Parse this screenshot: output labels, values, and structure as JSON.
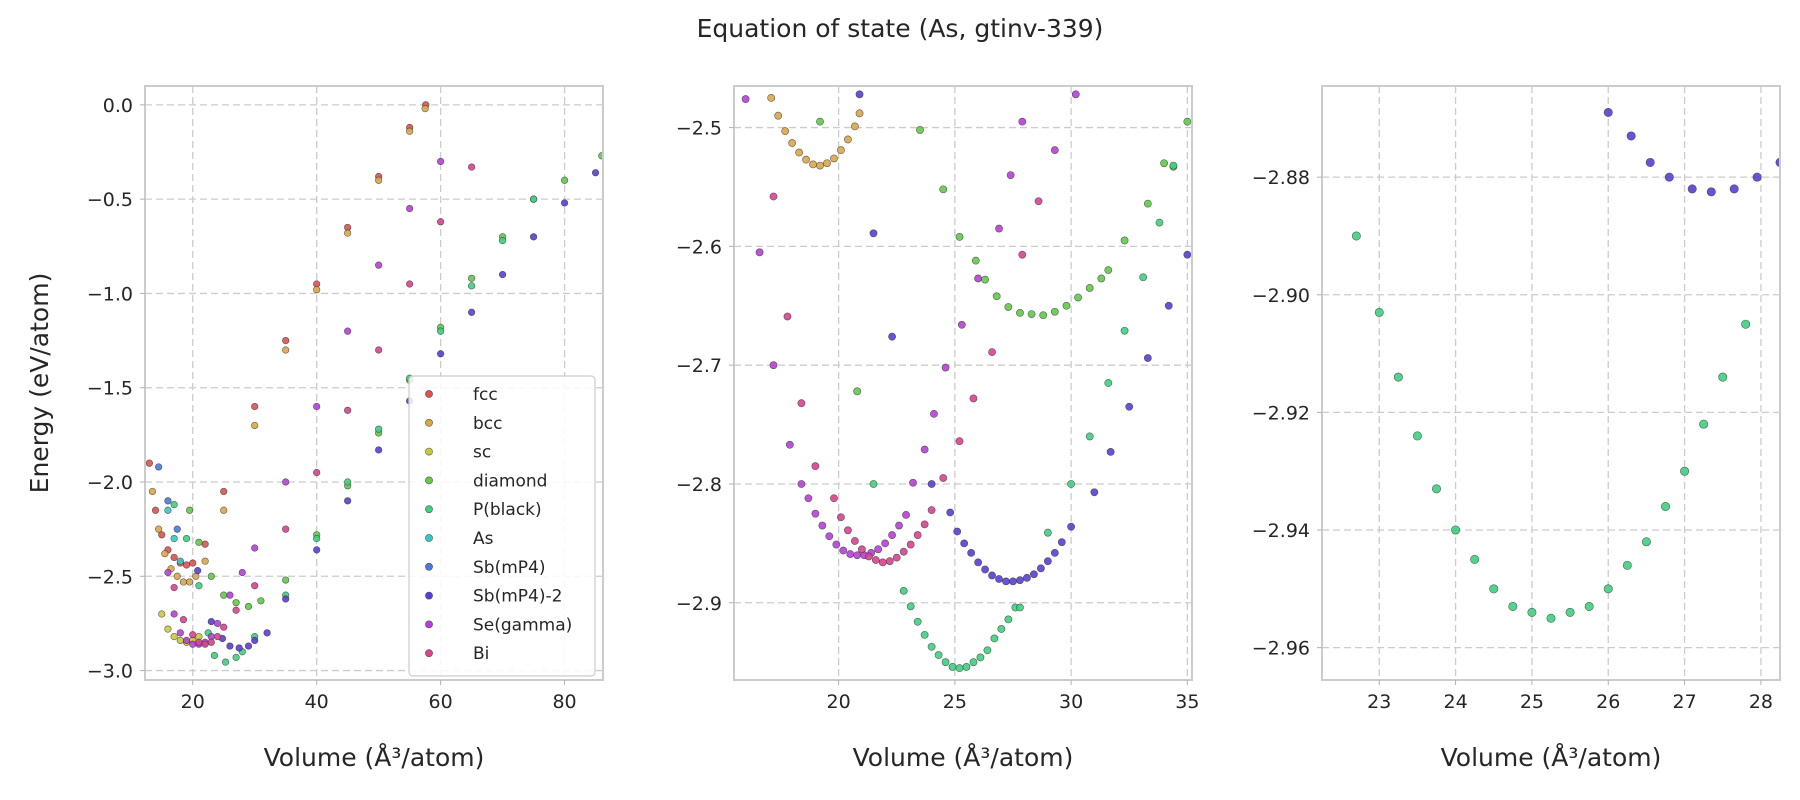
{
  "figure": {
    "title": "Equation of state (As, gtinv-339)"
  },
  "colors": {
    "fcc": "#d9534f",
    "bcc": "#d9a64a",
    "sc": "#c8c93a",
    "diamond": "#63c94a",
    "P(black)": "#3fcf80",
    "As": "#3bc6c6",
    "Sb(mP4)": "#4a7ad8",
    "Sb(mP4)-2": "#5b3ed0",
    "Se(gamma)": "#b640d6",
    "Bi": "#d6438f"
  },
  "chart_data": [
    {
      "type": "scatter",
      "title": "",
      "xlabel": "Volume (Å³/atom)",
      "ylabel": "Energy (eV/atom)",
      "xlim": [
        12.3,
        86.2
      ],
      "ylim": [
        -3.05,
        0.1
      ],
      "xticks": [
        20,
        40,
        60,
        80
      ],
      "yticks": [
        0.0,
        -0.5,
        -1.0,
        -1.5,
        -2.0,
        -2.5,
        -3.0
      ],
      "xtick_labels": [
        "20",
        "40",
        "60",
        "80"
      ],
      "ytick_labels": [
        "0.0",
        "−0.5",
        "−1.0",
        "−1.5",
        "−2.0",
        "−2.5",
        "−3.0"
      ],
      "grid": true,
      "legend": "lower-right",
      "series": [
        {
          "name": "fcc",
          "x": [
            13.0,
            14.0,
            15.0,
            16.0,
            17.0,
            18.0,
            19.0,
            20.0,
            22.0,
            25.0,
            30.0,
            35.0,
            40.0,
            45.0,
            50.0,
            55.0,
            57.6
          ],
          "y": [
            -1.9,
            -2.15,
            -2.28,
            -2.36,
            -2.4,
            -2.43,
            -2.44,
            -2.43,
            -2.33,
            -2.05,
            -1.6,
            -1.25,
            -0.95,
            -0.65,
            -0.38,
            -0.12,
            0.0
          ]
        },
        {
          "name": "bcc",
          "x": [
            13.5,
            14.5,
            15.5,
            16.5,
            17.5,
            18.5,
            19.5,
            20.5,
            22.0,
            25.0,
            30.0,
            35.0,
            40.0,
            45.0,
            50.0,
            55.0,
            57.5
          ],
          "y": [
            -2.05,
            -2.25,
            -2.38,
            -2.46,
            -2.5,
            -2.53,
            -2.53,
            -2.5,
            -2.42,
            -2.15,
            -1.7,
            -1.3,
            -0.98,
            -0.68,
            -0.4,
            -0.14,
            -0.02
          ]
        },
        {
          "name": "sc",
          "x": [
            15.0,
            16.0,
            17.0,
            18.0,
            19.0,
            20.0,
            21.0
          ],
          "y": [
            -2.7,
            -2.78,
            -2.82,
            -2.84,
            -2.85,
            -2.84,
            -2.82
          ]
        },
        {
          "name": "diamond",
          "x": [
            19.5,
            21.0,
            23.0,
            25.0,
            27.0,
            29.0,
            31.0,
            35.0,
            40.0,
            45.0,
            50.0,
            55.0,
            60.0,
            65.0,
            70.0,
            75.0,
            80.0,
            86.0
          ],
          "y": [
            -2.15,
            -2.32,
            -2.5,
            -2.6,
            -2.64,
            -2.66,
            -2.63,
            -2.52,
            -2.28,
            -2.02,
            -1.74,
            -1.46,
            -1.18,
            -0.92,
            -0.7,
            -0.5,
            -0.4,
            -0.27
          ]
        },
        {
          "name": "P(black)",
          "x": [
            17.0,
            19.0,
            21.0,
            22.5,
            23.5,
            25.3,
            27.0,
            28.0,
            30.0,
            35.0,
            40.0,
            45.0,
            50.0,
            55.0,
            60.0,
            65.0,
            70.0,
            75.0
          ],
          "y": [
            -2.12,
            -2.3,
            -2.55,
            -2.8,
            -2.92,
            -2.955,
            -2.93,
            -2.9,
            -2.82,
            -2.6,
            -2.3,
            -2.0,
            -1.72,
            -1.45,
            -1.2,
            -0.96,
            -0.72,
            -0.5
          ]
        },
        {
          "name": "As",
          "x": [
            16.0,
            17.0,
            18.0
          ],
          "y": [
            -2.15,
            -2.3,
            -2.42
          ]
        },
        {
          "name": "Sb(mP4)",
          "x": [
            14.5,
            16.0,
            17.5
          ],
          "y": [
            -1.92,
            -2.1,
            -2.25
          ]
        },
        {
          "name": "Sb(mP4)-2",
          "x": [
            20.8,
            23.0,
            24.8,
            26.0,
            27.5,
            29.0,
            30.0,
            32.0,
            35.0,
            40.0,
            45.0,
            50.0,
            55.0,
            60.0,
            65.0,
            70.0,
            75.0,
            80.0,
            85.0
          ],
          "y": [
            -2.47,
            -2.74,
            -2.83,
            -2.87,
            -2.88,
            -2.87,
            -2.84,
            -2.8,
            -2.62,
            -2.36,
            -2.1,
            -1.83,
            -1.57,
            -1.32,
            -1.1,
            -0.9,
            -0.7,
            -0.52,
            -0.36
          ]
        },
        {
          "name": "Se(gamma)",
          "x": [
            16.0,
            17.0,
            18.0,
            19.0,
            20.0,
            21.0,
            22.0,
            23.0,
            24.0,
            26.0,
            28.0,
            30.0,
            35.0,
            40.0,
            45.0,
            50.0,
            55.0,
            60.0
          ],
          "y": [
            -2.48,
            -2.7,
            -2.8,
            -2.84,
            -2.86,
            -2.86,
            -2.85,
            -2.82,
            -2.75,
            -2.6,
            -2.48,
            -2.35,
            -2.0,
            -1.6,
            -1.2,
            -0.85,
            -0.55,
            -0.3
          ]
        },
        {
          "name": "Bi",
          "x": [
            17.0,
            18.5,
            20.0,
            21.0,
            22.0,
            23.0,
            24.0,
            25.0,
            27.0,
            30.0,
            35.0,
            40.0,
            45.0,
            50.0,
            55.0,
            60.0,
            65.0
          ],
          "y": [
            -2.56,
            -2.73,
            -2.81,
            -2.85,
            -2.86,
            -2.85,
            -2.82,
            -2.77,
            -2.68,
            -2.55,
            -2.25,
            -1.95,
            -1.62,
            -1.3,
            -0.95,
            -0.62,
            -0.33
          ]
        }
      ]
    },
    {
      "type": "scatter",
      "title": "",
      "xlabel": "Volume (Å³/atom)",
      "ylabel": "",
      "xlim": [
        15.5,
        35.2
      ],
      "ylim": [
        -2.965,
        -2.465
      ],
      "xticks": [
        20,
        25,
        30,
        35
      ],
      "yticks": [
        -2.5,
        -2.6,
        -2.7,
        -2.8,
        -2.9
      ],
      "xtick_labels": [
        "20",
        "25",
        "30",
        "35"
      ],
      "ytick_labels": [
        "−2.5",
        "−2.6",
        "−2.7",
        "−2.8",
        "−2.9"
      ],
      "grid": true,
      "legend": "none",
      "series": [
        {
          "name": "bcc",
          "x": [
            17.1,
            17.4,
            17.7,
            18.0,
            18.3,
            18.6,
            18.9,
            19.2,
            19.5,
            19.8,
            20.1,
            20.4,
            20.7,
            20.9
          ],
          "y": [
            -2.475,
            -2.49,
            -2.503,
            -2.513,
            -2.521,
            -2.527,
            -2.531,
            -2.532,
            -2.53,
            -2.526,
            -2.519,
            -2.51,
            -2.499,
            -2.488
          ]
        },
        {
          "name": "diamond",
          "x": [
            19.2,
            20.8,
            23.5,
            24.5,
            25.2,
            25.9,
            26.3,
            26.8,
            27.3,
            27.8,
            28.3,
            28.8,
            29.3,
            29.8,
            30.3,
            30.8,
            31.3,
            31.6,
            32.3,
            33.3,
            34.0,
            34.4,
            35.0
          ],
          "y": [
            -2.495,
            -2.722,
            -2.502,
            -2.552,
            -2.592,
            -2.612,
            -2.628,
            -2.642,
            -2.651,
            -2.656,
            -2.657,
            -2.658,
            -2.655,
            -2.65,
            -2.643,
            -2.635,
            -2.627,
            -2.62,
            -2.595,
            -2.564,
            -2.53,
            -2.533,
            -2.495
          ]
        },
        {
          "name": "P(black)",
          "x": [
            21.5,
            22.8,
            23.1,
            23.4,
            23.7,
            24.0,
            24.3,
            24.6,
            24.9,
            25.2,
            25.5,
            25.8,
            26.1,
            26.4,
            26.7,
            27.0,
            27.3,
            27.6,
            27.8,
            29.0,
            30.0,
            30.8,
            31.6,
            32.3,
            33.1,
            33.8,
            34.4
          ],
          "y": [
            -2.8,
            -2.89,
            -2.903,
            -2.916,
            -2.927,
            -2.937,
            -2.944,
            -2.95,
            -2.954,
            -2.955,
            -2.954,
            -2.95,
            -2.946,
            -2.94,
            -2.93,
            -2.922,
            -2.914,
            -2.904,
            -2.904,
            -2.841,
            -2.8,
            -2.76,
            -2.715,
            -2.671,
            -2.626,
            -2.58,
            -2.532
          ]
        },
        {
          "name": "Sb(mP4)-2",
          "x": [
            20.9,
            21.5,
            22.3,
            24.0,
            24.8,
            25.1,
            25.4,
            25.7,
            26.0,
            26.3,
            26.6,
            26.9,
            27.2,
            27.5,
            27.8,
            28.1,
            28.4,
            28.7,
            29.0,
            29.3,
            29.6,
            30.0,
            31.0,
            31.7,
            32.5,
            33.3,
            34.2,
            35.0
          ],
          "y": [
            -2.472,
            -2.589,
            -2.676,
            -2.8,
            -2.824,
            -2.84,
            -2.85,
            -2.858,
            -2.866,
            -2.872,
            -2.877,
            -2.88,
            -2.882,
            -2.882,
            -2.881,
            -2.879,
            -2.876,
            -2.871,
            -2.865,
            -2.858,
            -2.849,
            -2.836,
            -2.807,
            -2.773,
            -2.735,
            -2.694,
            -2.65,
            -2.607
          ]
        },
        {
          "name": "Se(gamma)",
          "x": [
            16.0,
            16.6,
            17.2,
            17.9,
            18.4,
            18.7,
            19.0,
            19.3,
            19.6,
            19.9,
            20.2,
            20.5,
            20.8,
            21.1,
            21.4,
            21.7,
            22.0,
            22.3,
            22.6,
            22.9,
            23.2,
            23.7,
            24.1,
            24.6,
            25.3,
            26.0,
            26.9,
            27.4,
            27.9,
            29.3,
            30.2
          ],
          "y": [
            -2.476,
            -2.605,
            -2.7,
            -2.767,
            -2.8,
            -2.812,
            -2.825,
            -2.835,
            -2.844,
            -2.851,
            -2.856,
            -2.859,
            -2.86,
            -2.86,
            -2.858,
            -2.855,
            -2.85,
            -2.843,
            -2.835,
            -2.826,
            -2.799,
            -2.771,
            -2.741,
            -2.702,
            -2.666,
            -2.627,
            -2.585,
            -2.54,
            -2.495,
            -2.519,
            -2.472
          ]
        },
        {
          "name": "Bi",
          "x": [
            17.2,
            17.8,
            18.4,
            19.0,
            19.8,
            20.1,
            20.4,
            20.7,
            21.0,
            21.3,
            21.6,
            21.9,
            22.2,
            22.5,
            22.8,
            23.1,
            23.4,
            23.7,
            24.0,
            24.5,
            25.2,
            25.8,
            26.6,
            27.9,
            28.6
          ],
          "y": [
            -2.558,
            -2.659,
            -2.732,
            -2.785,
            -2.812,
            -2.828,
            -2.839,
            -2.848,
            -2.855,
            -2.861,
            -2.864,
            -2.866,
            -2.865,
            -2.862,
            -2.857,
            -2.851,
            -2.843,
            -2.834,
            -2.822,
            -2.795,
            -2.764,
            -2.728,
            -2.689,
            -2.607,
            -2.562
          ]
        }
      ]
    },
    {
      "type": "scatter",
      "title": "",
      "xlabel": "Volume (Å³/atom)",
      "ylabel": "",
      "xlim": [
        22.25,
        28.25
      ],
      "ylim": [
        -2.9655,
        -2.8645
      ],
      "xticks": [
        23,
        24,
        25,
        26,
        27,
        28
      ],
      "yticks": [
        -2.88,
        -2.9,
        -2.92,
        -2.94,
        -2.96
      ],
      "xtick_labels": [
        "23",
        "24",
        "25",
        "26",
        "27",
        "28"
      ],
      "ytick_labels": [
        "−2.88",
        "−2.90",
        "−2.92",
        "−2.94",
        "−2.96"
      ],
      "grid": true,
      "legend": "none",
      "series": [
        {
          "name": "P(black)",
          "x": [
            22.7,
            23.0,
            23.25,
            23.5,
            23.75,
            24.0,
            24.25,
            24.5,
            24.75,
            25.0,
            25.25,
            25.5,
            25.75,
            26.0,
            26.25,
            26.5,
            26.75,
            27.0,
            27.25,
            27.5,
            27.8
          ],
          "y": [
            -2.89,
            -2.903,
            -2.914,
            -2.924,
            -2.933,
            -2.94,
            -2.945,
            -2.95,
            -2.953,
            -2.954,
            -2.955,
            -2.954,
            -2.953,
            -2.95,
            -2.946,
            -2.942,
            -2.936,
            -2.93,
            -2.922,
            -2.914,
            -2.905
          ]
        },
        {
          "name": "Sb(mP4)-2",
          "x": [
            26.0,
            26.3,
            26.55,
            26.8,
            27.1,
            27.35,
            27.65,
            27.95,
            28.25
          ],
          "y": [
            -2.869,
            -2.873,
            -2.8775,
            -2.88,
            -2.882,
            -2.8825,
            -2.882,
            -2.88,
            -2.8775
          ]
        }
      ]
    }
  ],
  "legend": {
    "entries": [
      "fcc",
      "bcc",
      "sc",
      "diamond",
      "P(black)",
      "As",
      "Sb(mP4)",
      "Sb(mP4)-2",
      "Se(gamma)",
      "Bi"
    ]
  }
}
